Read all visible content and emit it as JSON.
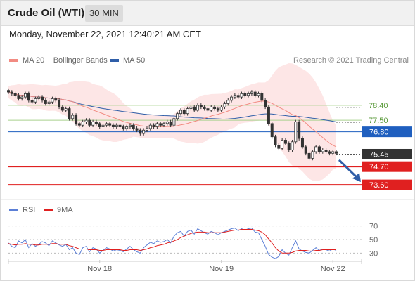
{
  "header": {
    "title": "Crude Oil (WTI)",
    "timeframe": "30 MIN",
    "datetime": "Monday, November 22, 2021 12:40:21 AM CET"
  },
  "legend": {
    "ma20_label": "MA 20 + Bollinger Bands",
    "ma50_label": "MA 50",
    "credit": "Research © 2021 Trading Central",
    "rsi_label": "RSI",
    "rsi_ma_label": "9MA"
  },
  "colors": {
    "up_candle": "#ffffff",
    "down_candle": "#333333",
    "ma20": "#f28b82",
    "bollinger_fill": "#fde3e3",
    "ma50": "#2f5ea8",
    "resistance_line": "#a9d18e",
    "pivot_line": "#1f5fbf",
    "support_line": "#e02020",
    "current_price_box": "#333333",
    "arrow": "#2f5ea8",
    "rsi": "#5b7fd6",
    "rsi_ma": "#e02020"
  },
  "chart_data": [
    {
      "type": "candlestick",
      "title": "",
      "instrument": "Crude Oil (WTI)",
      "interval": "30 MIN",
      "ylim": [
        72.8,
        80.6
      ],
      "x_labels": [
        "Nov 18",
        "Nov 19",
        "Nov 22"
      ],
      "close_series": [
        79.2,
        79.1,
        79.0,
        78.8,
        78.9,
        79.1,
        78.7,
        78.6,
        78.8,
        78.9,
        78.7,
        78.5,
        78.6,
        78.8,
        78.7,
        78.3,
        78.1,
        78.2,
        77.6,
        77.8,
        77.3,
        77.2,
        77.4,
        77.5,
        77.2,
        77.4,
        77.3,
        77.1,
        77.2,
        77.3,
        77.2,
        77.1,
        77.2,
        77.1,
        77.0,
        77.1,
        77.2,
        77.0,
        76.9,
        76.7,
        76.9,
        77.0,
        77.2,
        77.1,
        77.3,
        77.2,
        77.3,
        77.4,
        77.2,
        77.6,
        77.9,
        78.1,
        77.9,
        78.2,
        78.3,
        78.1,
        78.4,
        78.3,
        78.2,
        78.1,
        78.3,
        78.2,
        78.1,
        78.3,
        78.5,
        78.7,
        78.9,
        79.0,
        78.9,
        79.1,
        79.0,
        79.1,
        79.2,
        79.0,
        79.1,
        78.7,
        78.3,
        77.3,
        76.5,
        76.0,
        75.8,
        76.3,
        76.1,
        75.7,
        76.2,
        77.4,
        76.4,
        75.9,
        75.5,
        75.2,
        75.6,
        75.9,
        75.6,
        75.7,
        75.6,
        75.5,
        75.6,
        75.5
      ],
      "levels": [
        {
          "value": 78.4,
          "label": "78.40",
          "kind": "resistance"
        },
        {
          "value": 77.5,
          "label": "77.50",
          "kind": "resistance"
        },
        {
          "value": 76.8,
          "label": "76.80",
          "kind": "pivot"
        },
        {
          "value": 75.45,
          "label": "75.45",
          "kind": "last"
        },
        {
          "value": 74.7,
          "label": "74.70",
          "kind": "support"
        },
        {
          "value": 73.6,
          "label": "73.60",
          "kind": "support"
        }
      ],
      "series": [
        {
          "name": "MA 20 + Bollinger Bands"
        },
        {
          "name": "MA 50"
        }
      ]
    },
    {
      "type": "line",
      "title": "",
      "ylim": [
        20,
        80
      ],
      "y_ticks": [
        70,
        50,
        30
      ],
      "series": [
        {
          "name": "RSI",
          "values": [
            45,
            40,
            38,
            48,
            45,
            50,
            38,
            44,
            40,
            43,
            47,
            45,
            41,
            48,
            45,
            42,
            40,
            43,
            35,
            38,
            30,
            28,
            38,
            40,
            32,
            38,
            36,
            30,
            34,
            38,
            36,
            33,
            35,
            34,
            32,
            36,
            40,
            35,
            32,
            30,
            38,
            42,
            46,
            44,
            48,
            46,
            47,
            50,
            45,
            55,
            60,
            62,
            55,
            62,
            64,
            58,
            66,
            63,
            60,
            58,
            62,
            60,
            57,
            60,
            62,
            64,
            66,
            67,
            63,
            66,
            64,
            66,
            67,
            61,
            60,
            50,
            40,
            28,
            24,
            22,
            25,
            35,
            30,
            27,
            38,
            48,
            36,
            33,
            31,
            30,
            34,
            38,
            34,
            36,
            35,
            33,
            36,
            34
          ]
        },
        {
          "name": "9MA",
          "values": [
            44,
            43,
            42,
            43,
            43,
            44,
            43,
            43,
            42,
            42,
            43,
            43,
            43,
            44,
            44,
            43,
            43,
            43,
            41,
            40,
            38,
            36,
            36,
            36,
            35,
            35,
            35,
            34,
            34,
            35,
            35,
            35,
            35,
            35,
            34,
            34,
            35,
            35,
            35,
            34,
            35,
            36,
            38,
            39,
            41,
            42,
            43,
            45,
            46,
            48,
            50,
            53,
            55,
            57,
            59,
            60,
            61,
            61,
            61,
            60,
            60,
            60,
            60,
            60,
            61,
            62,
            63,
            64,
            64,
            65,
            65,
            65,
            65,
            64,
            63,
            61,
            57,
            51,
            45,
            38,
            33,
            30,
            30,
            30,
            31,
            33,
            34,
            34,
            34,
            33,
            33,
            34,
            34,
            35,
            35,
            35,
            35,
            35
          ]
        }
      ]
    }
  ]
}
